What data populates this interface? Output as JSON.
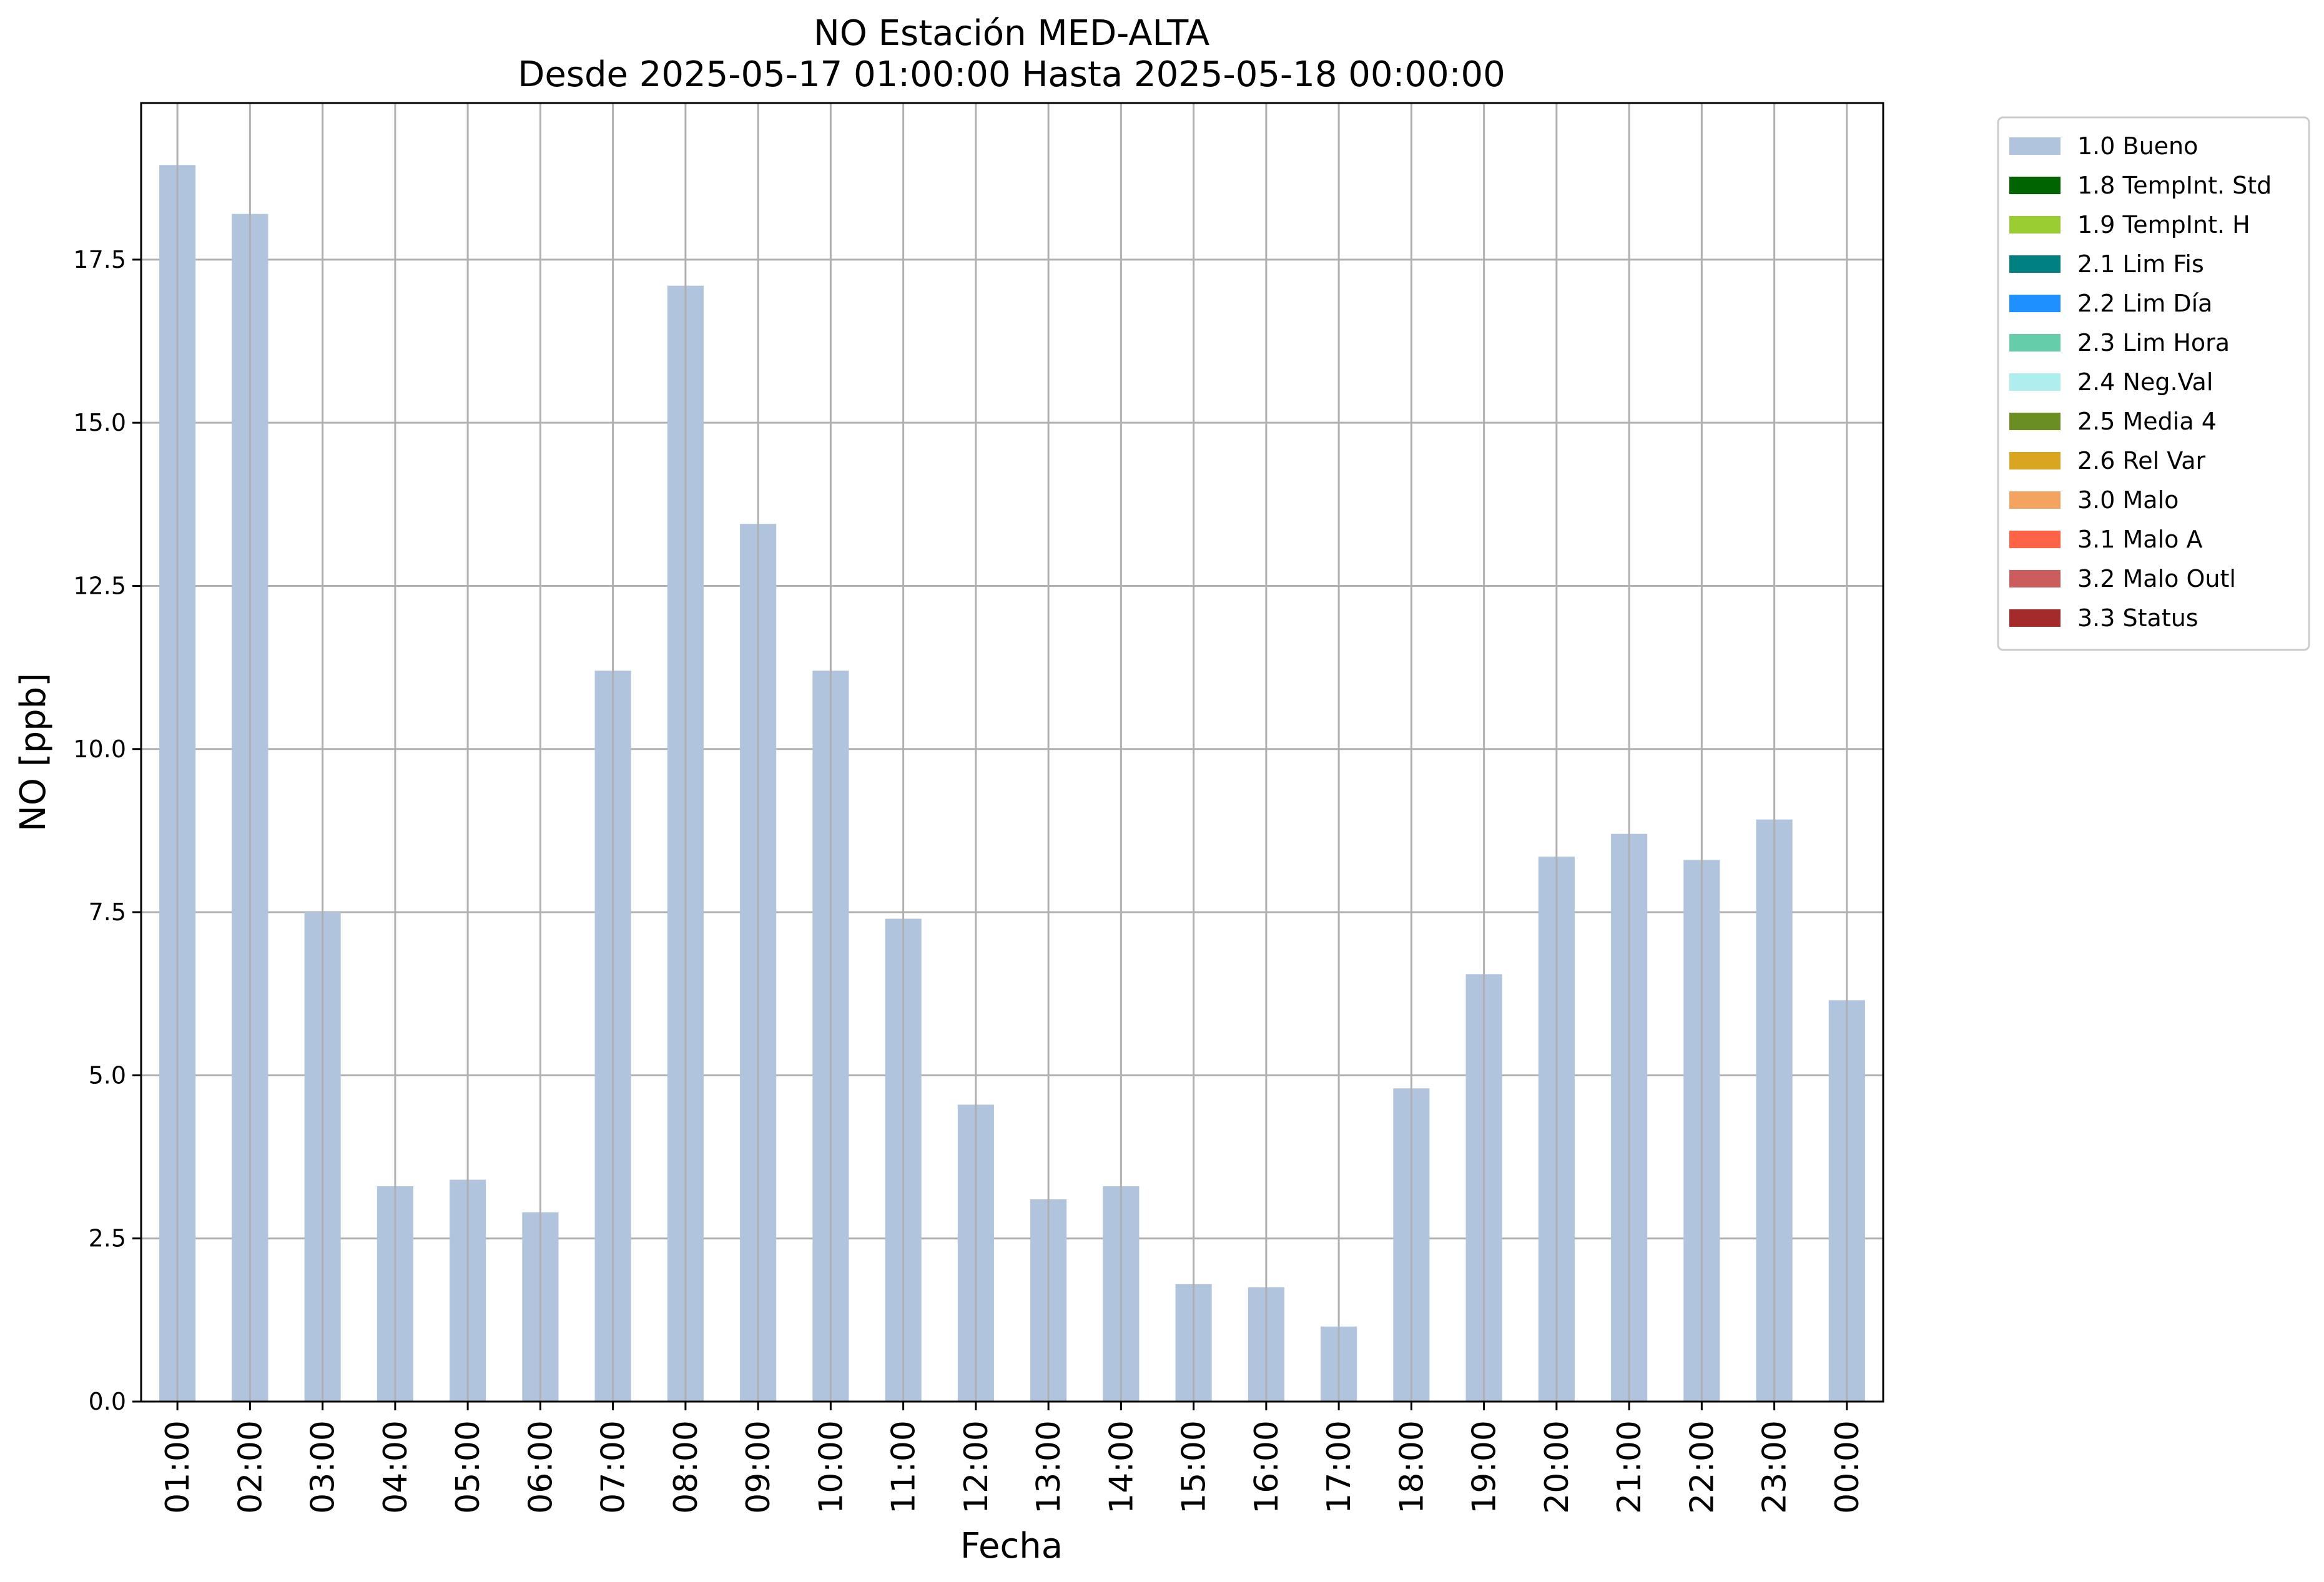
{
  "chart_data": {
    "type": "bar",
    "title": "NO Estación MED-ALTA",
    "subtitle": "Desde 2025-05-17 01:00:00 Hasta 2025-05-18 00:00:00",
    "xlabel": "Fecha",
    "ylabel": "NO [ppb]",
    "ylim": [
      0,
      19.9
    ],
    "yticks": [
      "0.0",
      "2.5",
      "5.0",
      "7.5",
      "10.0",
      "12.5",
      "15.0",
      "17.5"
    ],
    "grid": true,
    "legend_position": "outside-top-right",
    "categories": [
      "01:00",
      "02:00",
      "03:00",
      "04:00",
      "05:00",
      "06:00",
      "07:00",
      "08:00",
      "09:00",
      "10:00",
      "11:00",
      "12:00",
      "13:00",
      "14:00",
      "15:00",
      "16:00",
      "17:00",
      "18:00",
      "19:00",
      "20:00",
      "21:00",
      "22:00",
      "23:00",
      "00:00"
    ],
    "series": [
      {
        "name": "1.0 Bueno",
        "color": "#b0c4de",
        "values": [
          18.95,
          18.2,
          7.5,
          3.3,
          3.4,
          2.9,
          11.2,
          17.1,
          13.45,
          11.2,
          7.4,
          4.55,
          3.1,
          3.3,
          1.8,
          1.75,
          1.15,
          4.8,
          6.55,
          8.35,
          8.7,
          8.3,
          8.92,
          6.15
        ]
      }
    ],
    "legend": [
      {
        "label": "1.0 Bueno",
        "color": "#b0c4de"
      },
      {
        "label": "1.8 TempInt. Std",
        "color": "#006400"
      },
      {
        "label": "1.9 TempInt. H",
        "color": "#9acd32"
      },
      {
        "label": "2.1 Lim Fis",
        "color": "#008080"
      },
      {
        "label": "2.2 Lim Día",
        "color": "#1e90ff"
      },
      {
        "label": "2.3 Lim Hora",
        "color": "#66cdaa"
      },
      {
        "label": "2.4 Neg.Val",
        "color": "#afeeee"
      },
      {
        "label": "2.5 Media 4",
        "color": "#6b8e23"
      },
      {
        "label": "2.6 Rel Var",
        "color": "#daa520"
      },
      {
        "label": "3.0 Malo",
        "color": "#f4a460"
      },
      {
        "label": "3.1 Malo A",
        "color": "#ff6347"
      },
      {
        "label": "3.2 Malo Outl",
        "color": "#cd5c5c"
      },
      {
        "label": "3.3 Status",
        "color": "#a52a2a"
      }
    ]
  }
}
